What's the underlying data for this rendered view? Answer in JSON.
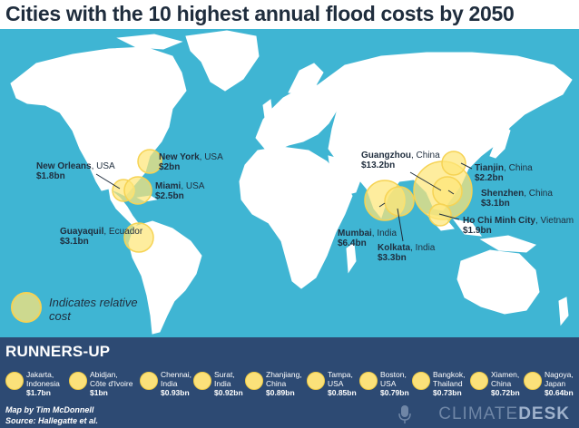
{
  "title": "Cities with the 10 highest annual flood costs by 2050",
  "colors": {
    "ocean": "#3fb5d3",
    "land": "#ffffff",
    "bubble": "#fde678",
    "panel": "#2d4a73"
  },
  "cities": [
    {
      "name": "New York",
      "country": ", USA",
      "cost": "$2bn"
    },
    {
      "name": "New Orleans",
      "country": ", USA",
      "cost": "$1.8bn"
    },
    {
      "name": "Miami",
      "country": ", USA",
      "cost": "$2.5bn"
    },
    {
      "name": "Guayaquil",
      "country": ", Ecuador",
      "cost": "$3.1bn"
    },
    {
      "name": "Guangzhou",
      "country": ", China",
      "cost": "$13.2bn"
    },
    {
      "name": "Tianjin",
      "country": ", China",
      "cost": "$2.2bn"
    },
    {
      "name": "Shenzhen",
      "country": ", China",
      "cost": "$3.1bn"
    },
    {
      "name": "Ho Chi Minh City",
      "country": ", Vietnam",
      "cost": "$1.9bn"
    },
    {
      "name": "Mumbai",
      "country": ", India",
      "cost": "$6.4bn"
    },
    {
      "name": "Kolkata",
      "country": ", India",
      "cost": "$3.3bn"
    }
  ],
  "legend": {
    "label": "Indicates relative cost"
  },
  "runners_up": {
    "title": "RUNNERS-UP",
    "items": [
      {
        "city": "Jakarta,",
        "country": "Indonesia",
        "cost": "$1.7bn"
      },
      {
        "city": "Abidjan,",
        "country": "Côte d'Ivoire",
        "cost": "$1bn"
      },
      {
        "city": "Chennai,",
        "country": "India",
        "cost": "$0.93bn"
      },
      {
        "city": "Surat,",
        "country": "India",
        "cost": "$0.92bn"
      },
      {
        "city": "Zhanjiang,",
        "country": "China",
        "cost": "$0.89bn"
      },
      {
        "city": "Tampa,",
        "country": "USA",
        "cost": "$0.85bn"
      },
      {
        "city": "Boston,",
        "country": "USA",
        "cost": "$0.79bn"
      },
      {
        "city": "Bangkok,",
        "country": "Thailand",
        "cost": "$0.73bn"
      },
      {
        "city": "Xiamen,",
        "country": "China",
        "cost": "$0.72bn"
      },
      {
        "city": "Nagoya,",
        "country": "Japan",
        "cost": "$0.64bn"
      }
    ]
  },
  "credits": {
    "line1": "Map by Tim McDonnell",
    "line2": "Source: Hallegatte et al."
  },
  "brand": {
    "part1": "CLIMATE",
    "part2": "DESK"
  }
}
